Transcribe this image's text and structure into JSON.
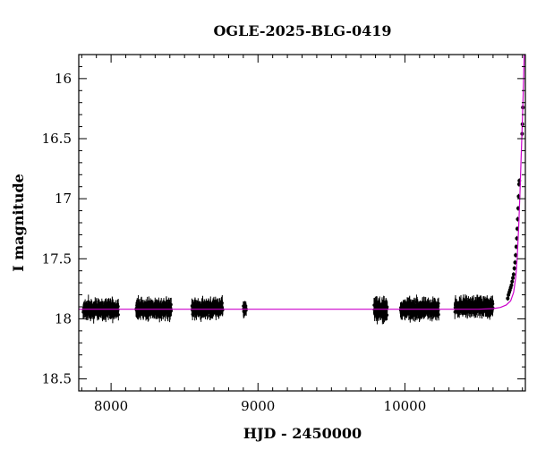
{
  "chart_data": {
    "type": "scatter",
    "title": "OGLE-2025-BLG-0419",
    "xlabel": "HJD - 2450000",
    "ylabel": "I magnitude",
    "xlim": [
      7780,
      10820
    ],
    "ylim": [
      18.6,
      15.8
    ],
    "y_inverted": true,
    "x_ticks": [
      8000,
      9000,
      10000
    ],
    "y_ticks": [
      16,
      16.5,
      17,
      17.5,
      18,
      18.5
    ],
    "x_tick_labels": [
      "8000",
      "9000",
      "10000"
    ],
    "y_tick_labels": [
      "16",
      "16.5",
      "17",
      "17.5",
      "18",
      "18.5"
    ],
    "colors": {
      "data": "#000000",
      "model": "#cc00cc"
    },
    "observation_seasons": [
      {
        "x_start": 7810,
        "x_end": 8050,
        "mag_mean": 17.92,
        "scatter": 0.04
      },
      {
        "x_start": 8170,
        "x_end": 8410,
        "mag_mean": 17.92,
        "scatter": 0.04
      },
      {
        "x_start": 8550,
        "x_end": 8760,
        "mag_mean": 17.91,
        "scatter": 0.04
      },
      {
        "x_start": 8900,
        "x_end": 8920,
        "mag_mean": 17.92,
        "scatter": 0.03
      },
      {
        "x_start": 9790,
        "x_end": 9880,
        "mag_mean": 17.92,
        "scatter": 0.05
      },
      {
        "x_start": 9970,
        "x_end": 10230,
        "mag_mean": 17.92,
        "scatter": 0.04
      },
      {
        "x_start": 10340,
        "x_end": 10600,
        "mag_mean": 17.9,
        "scatter": 0.04
      }
    ],
    "rise_points": [
      {
        "x": 10700,
        "y": 17.83
      },
      {
        "x": 10705,
        "y": 17.8
      },
      {
        "x": 10710,
        "y": 17.78
      },
      {
        "x": 10715,
        "y": 17.76
      },
      {
        "x": 10720,
        "y": 17.74
      },
      {
        "x": 10725,
        "y": 17.72
      },
      {
        "x": 10730,
        "y": 17.69
      },
      {
        "x": 10735,
        "y": 17.66
      },
      {
        "x": 10740,
        "y": 17.63
      },
      {
        "x": 10745,
        "y": 17.58
      },
      {
        "x": 10750,
        "y": 17.53
      },
      {
        "x": 10754,
        "y": 17.47
      },
      {
        "x": 10758,
        "y": 17.4
      },
      {
        "x": 10762,
        "y": 17.33
      },
      {
        "x": 10765,
        "y": 17.25
      },
      {
        "x": 10768,
        "y": 17.17
      },
      {
        "x": 10771,
        "y": 17.08
      },
      {
        "x": 10774,
        "y": 16.98
      },
      {
        "x": 10777,
        "y": 16.88
      },
      {
        "x": 10779,
        "y": 16.85
      },
      {
        "x": 10798,
        "y": 16.46
      },
      {
        "x": 10800,
        "y": 16.38
      },
      {
        "x": 10803,
        "y": 16.24
      }
    ],
    "model_curve": [
      {
        "x": 7780,
        "y": 17.92
      },
      {
        "x": 10500,
        "y": 17.92
      },
      {
        "x": 10600,
        "y": 17.915
      },
      {
        "x": 10650,
        "y": 17.905
      },
      {
        "x": 10690,
        "y": 17.885
      },
      {
        "x": 10720,
        "y": 17.85
      },
      {
        "x": 10740,
        "y": 17.78
      },
      {
        "x": 10755,
        "y": 17.65
      },
      {
        "x": 10765,
        "y": 17.48
      },
      {
        "x": 10775,
        "y": 17.22
      },
      {
        "x": 10783,
        "y": 16.96
      },
      {
        "x": 10790,
        "y": 16.7
      },
      {
        "x": 10797,
        "y": 16.45
      },
      {
        "x": 10803,
        "y": 16.22
      },
      {
        "x": 10808,
        "y": 16.02
      },
      {
        "x": 10812,
        "y": 15.8
      }
    ]
  }
}
